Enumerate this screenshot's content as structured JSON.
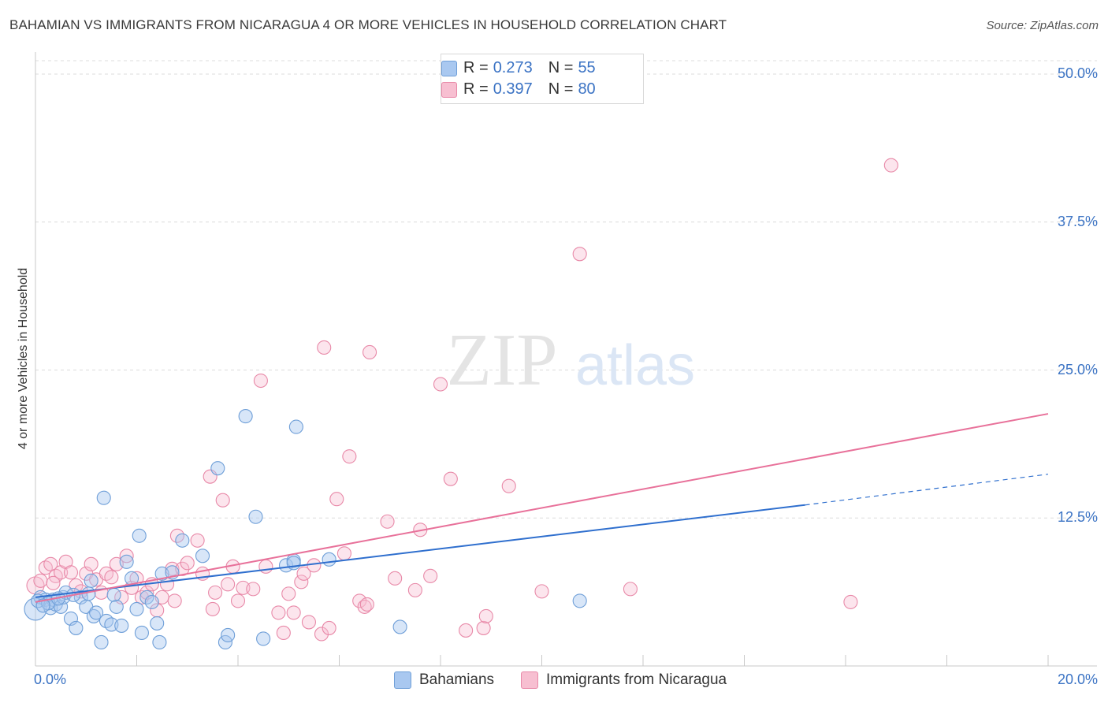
{
  "title": "BAHAMIAN VS IMMIGRANTS FROM NICARAGUA 4 OR MORE VEHICLES IN HOUSEHOLD CORRELATION CHART",
  "source": "Source: ZipAtlas.com",
  "watermark": {
    "zip": "ZIP",
    "atlas": "atlas"
  },
  "legend_top": {
    "rows": [
      {
        "r_label": "R =",
        "r_value": "0.273",
        "n_label": "N =",
        "n_value": "55",
        "color": "#a9c8f0",
        "border": "#6f9fd8"
      },
      {
        "r_label": "R =",
        "r_value": "0.397",
        "n_label": "N =",
        "n_value": "80",
        "color": "#f7bfd1",
        "border": "#e889a8"
      }
    ]
  },
  "legend_bottom": [
    {
      "label": "Bahamians",
      "color": "#a9c8f0",
      "border": "#6f9fd8"
    },
    {
      "label": "Immigrants from Nicaragua",
      "color": "#f7bfd1",
      "border": "#e889a8"
    }
  ],
  "colors": {
    "blue_line": "#2f6fce",
    "pink_line": "#e8719a",
    "axis_text": "#3b73c4",
    "grid": "#dcdcdc"
  },
  "chart_data": {
    "type": "scatter",
    "title": "BAHAMIAN VS IMMIGRANTS FROM NICARAGUA 4 OR MORE VEHICLES IN HOUSEHOLD CORRELATION CHART",
    "xlabel": "",
    "ylabel": "4 or more Vehicles in Household",
    "xlim": [
      0,
      20
    ],
    "ylim": [
      0,
      50
    ],
    "x_tick_labels": [
      "0.0%",
      "20.0%"
    ],
    "y_ticks": [
      12.5,
      25.0,
      37.5,
      50.0
    ],
    "y_tick_labels": [
      "12.5%",
      "25.0%",
      "37.5%",
      "50.0%"
    ],
    "series": [
      {
        "name": "Bahamians",
        "r": 0.273,
        "n": 55,
        "trend": {
          "x0": 0,
          "y0": 5.8,
          "x1": 15.2,
          "y1": 13.6,
          "dashed_to_x": 20,
          "dashed_to_y": 16.2
        },
        "points": [
          [
            0.0,
            4.8
          ],
          [
            0.1,
            5.8
          ],
          [
            0.2,
            5.6
          ],
          [
            0.3,
            4.9
          ],
          [
            0.35,
            5.6
          ],
          [
            0.4,
            5.2
          ],
          [
            0.5,
            5.0
          ],
          [
            0.55,
            5.8
          ],
          [
            0.6,
            6.2
          ],
          [
            0.7,
            4.0
          ],
          [
            0.8,
            3.2
          ],
          [
            0.9,
            5.8
          ],
          [
            1.0,
            5.0
          ],
          [
            1.1,
            7.2
          ],
          [
            1.15,
            4.2
          ],
          [
            1.2,
            4.5
          ],
          [
            1.3,
            2.0
          ],
          [
            1.35,
            14.2
          ],
          [
            1.4,
            3.8
          ],
          [
            1.5,
            3.5
          ],
          [
            1.55,
            6.0
          ],
          [
            1.6,
            5.0
          ],
          [
            1.7,
            3.4
          ],
          [
            1.8,
            8.8
          ],
          [
            1.9,
            7.4
          ],
          [
            2.0,
            4.8
          ],
          [
            2.05,
            11.0
          ],
          [
            2.1,
            2.8
          ],
          [
            2.2,
            5.8
          ],
          [
            2.4,
            3.6
          ],
          [
            2.45,
            2.0
          ],
          [
            2.5,
            7.8
          ],
          [
            2.7,
            7.9
          ],
          [
            2.9,
            10.6
          ],
          [
            3.3,
            9.3
          ],
          [
            3.6,
            16.7
          ],
          [
            3.75,
            2.0
          ],
          [
            3.8,
            2.6
          ],
          [
            4.15,
            21.1
          ],
          [
            4.35,
            12.6
          ],
          [
            4.5,
            2.3
          ],
          [
            4.95,
            8.5
          ],
          [
            5.1,
            8.9
          ],
          [
            5.1,
            8.7
          ],
          [
            5.15,
            20.2
          ],
          [
            5.8,
            9.0
          ],
          [
            7.2,
            3.3
          ],
          [
            10.75,
            5.5
          ],
          [
            0.05,
            5.5
          ],
          [
            0.25,
            5.3
          ],
          [
            0.45,
            5.7
          ],
          [
            1.05,
            6.1
          ],
          [
            2.3,
            5.4
          ],
          [
            0.15,
            5.1
          ],
          [
            0.75,
            6.0
          ]
        ]
      },
      {
        "name": "Immigrants from Nicaragua",
        "r": 0.397,
        "n": 80,
        "trend": {
          "x0": 0,
          "y0": 5.4,
          "x1": 20,
          "y1": 21.3
        },
        "points": [
          [
            0.0,
            6.8
          ],
          [
            0.1,
            7.2
          ],
          [
            0.2,
            8.3
          ],
          [
            0.3,
            8.6
          ],
          [
            0.4,
            7.6
          ],
          [
            0.5,
            7.9
          ],
          [
            0.6,
            8.8
          ],
          [
            0.7,
            7.9
          ],
          [
            0.8,
            6.8
          ],
          [
            0.9,
            6.3
          ],
          [
            1.0,
            7.8
          ],
          [
            1.1,
            8.6
          ],
          [
            1.2,
            7.3
          ],
          [
            1.3,
            6.2
          ],
          [
            1.4,
            7.8
          ],
          [
            1.5,
            7.5
          ],
          [
            1.6,
            8.6
          ],
          [
            1.7,
            5.8
          ],
          [
            1.8,
            9.3
          ],
          [
            1.9,
            6.6
          ],
          [
            2.0,
            7.4
          ],
          [
            2.1,
            5.8
          ],
          [
            2.2,
            6.2
          ],
          [
            2.3,
            6.9
          ],
          [
            2.4,
            4.7
          ],
          [
            2.5,
            5.8
          ],
          [
            2.6,
            6.9
          ],
          [
            2.7,
            8.2
          ],
          [
            2.75,
            5.5
          ],
          [
            2.8,
            11.0
          ],
          [
            2.9,
            8.2
          ],
          [
            3.0,
            8.7
          ],
          [
            3.2,
            10.6
          ],
          [
            3.3,
            7.8
          ],
          [
            3.45,
            16.0
          ],
          [
            3.5,
            4.8
          ],
          [
            3.55,
            6.2
          ],
          [
            3.7,
            14.0
          ],
          [
            3.8,
            6.9
          ],
          [
            3.9,
            8.4
          ],
          [
            4.0,
            5.5
          ],
          [
            4.1,
            6.6
          ],
          [
            4.3,
            6.5
          ],
          [
            4.45,
            24.1
          ],
          [
            4.55,
            8.4
          ],
          [
            4.8,
            4.5
          ],
          [
            4.9,
            2.8
          ],
          [
            5.0,
            6.1
          ],
          [
            5.1,
            4.5
          ],
          [
            5.25,
            7.1
          ],
          [
            5.3,
            7.8
          ],
          [
            5.4,
            3.7
          ],
          [
            5.5,
            8.5
          ],
          [
            5.65,
            2.7
          ],
          [
            5.7,
            26.9
          ],
          [
            5.8,
            3.2
          ],
          [
            5.95,
            14.1
          ],
          [
            6.1,
            9.5
          ],
          [
            6.2,
            17.7
          ],
          [
            6.4,
            5.5
          ],
          [
            6.5,
            5.0
          ],
          [
            6.55,
            5.2
          ],
          [
            6.6,
            26.5
          ],
          [
            6.95,
            12.2
          ],
          [
            7.1,
            7.4
          ],
          [
            7.5,
            6.4
          ],
          [
            7.6,
            11.5
          ],
          [
            7.8,
            7.6
          ],
          [
            8.0,
            23.8
          ],
          [
            8.2,
            15.8
          ],
          [
            8.5,
            3.0
          ],
          [
            8.85,
            3.2
          ],
          [
            8.9,
            4.2
          ],
          [
            9.35,
            15.2
          ],
          [
            10.0,
            6.3
          ],
          [
            10.75,
            34.8
          ],
          [
            11.75,
            6.5
          ],
          [
            16.1,
            5.4
          ],
          [
            16.9,
            42.3
          ],
          [
            0.35,
            7.0
          ]
        ]
      }
    ]
  }
}
